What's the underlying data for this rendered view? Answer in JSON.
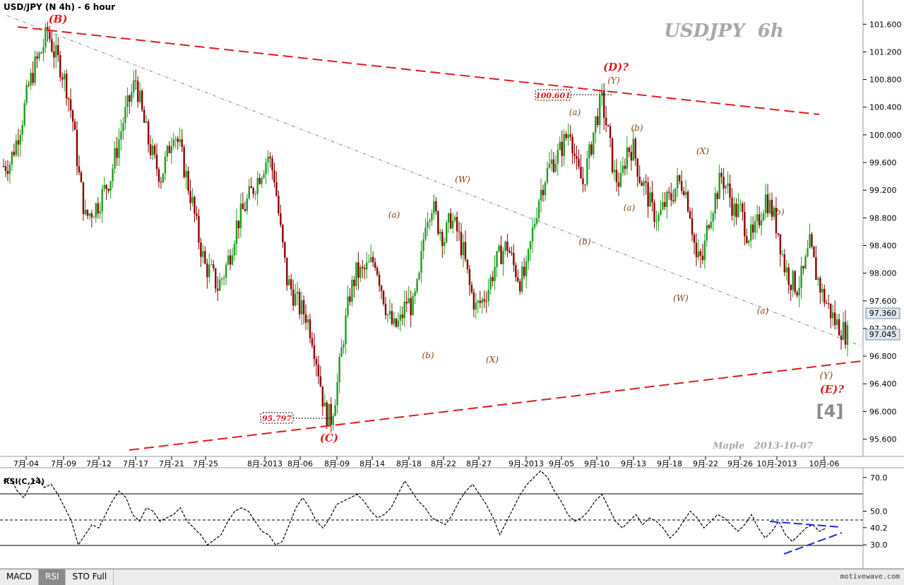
{
  "header": {
    "title": "USD/JPY (N 4h) - 6 hour",
    "watermark": "USDJPY  6h",
    "author": "Maple   2013-10-07",
    "wave_label": "[4]"
  },
  "indicator": {
    "title": "RSI(C,14)"
  },
  "tabs": [
    {
      "label": "MACD",
      "active": false
    },
    {
      "label": "RSI",
      "active": true
    },
    {
      "label": "STO Full",
      "active": false
    }
  ],
  "brand": "motivewave.com",
  "colors": {
    "up": "#1e9e1e",
    "down": "#8b0000",
    "trend": "#e31a1a",
    "label": "#8b4513",
    "major_label": "#e31a1a",
    "rsi_trend": "#1a2be3"
  },
  "chart_data": [
    {
      "type": "candlestick",
      "title": "USD/JPY (N 4h) - 6 hour",
      "y_ticks": [
        101.6,
        101.2,
        100.8,
        100.4,
        100.0,
        99.6,
        99.2,
        98.8,
        98.4,
        98.0,
        97.6,
        97.2,
        96.8,
        96.4,
        96.0,
        95.6
      ],
      "ylim": [
        95.35,
        101.95
      ],
      "x_ticks": [
        "7月-04",
        "7月-09",
        "7月-12",
        "7月-17",
        "7月-21",
        "7月-25",
        "8月-2013",
        "8月-06",
        "8月-09",
        "8月-14",
        "8月-18",
        "8月-22",
        "8月-27",
        "9月-2013",
        "9月-05",
        "9月-10",
        "9月-13",
        "9月-18",
        "9月-22",
        "9月-26",
        "10月-2013",
        "10月-06"
      ],
      "grid": false,
      "price_labels": [
        {
          "value": "97.360"
        },
        {
          "value": "97.045"
        }
      ],
      "key_points": [
        {
          "date": "7月-08",
          "price": 101.53,
          "label": "(B)"
        },
        {
          "date": "8月-08",
          "price": 95.797,
          "label": "(C)"
        },
        {
          "date": "9月-11",
          "price": 100.601,
          "label": "(D)?"
        },
        {
          "date": "10月-07",
          "price": 96.9,
          "label": "(E)?"
        }
      ],
      "annotations": [
        "(B)",
        "(a)",
        "(b)",
        "(W)",
        "(X)",
        "(C)",
        "(a)",
        "(b)",
        "(D)?",
        "(Y)",
        "(b)",
        "(a)",
        "(b)",
        "(W)",
        "(X)",
        "(a)",
        "(b)",
        "(Y)",
        "(E)?"
      ],
      "boxed_values": [
        "100.601",
        "95.797"
      ],
      "series": [
        {
          "name": "close",
          "values": [
            99.55,
            99.6,
            99.9,
            100.25,
            100.7,
            101.0,
            101.2,
            101.5,
            101.2,
            101.0,
            100.7,
            100.2,
            99.4,
            98.8,
            98.9,
            99.0,
            99.2,
            99.4,
            99.8,
            100.2,
            100.5,
            100.8,
            100.3,
            99.9,
            99.6,
            99.4,
            99.7,
            100.1,
            99.8,
            99.4,
            99.0,
            98.5,
            98.1,
            98.0,
            97.8,
            98.0,
            98.3,
            98.7,
            98.9,
            99.1,
            99.3,
            99.5,
            99.7,
            99.4,
            98.6,
            97.9,
            97.7,
            97.5,
            97.4,
            97.1,
            96.6,
            96.0,
            95.9,
            96.4,
            97.1,
            97.7,
            98.0,
            98.0,
            98.1,
            98.2,
            97.8,
            97.4,
            97.2,
            97.3,
            97.6,
            97.5,
            97.9,
            98.8,
            99.0,
            98.7,
            98.5,
            98.8,
            98.6,
            98.3,
            97.8,
            97.5,
            97.6,
            97.8,
            98.1,
            98.3,
            98.4,
            98.1,
            97.9,
            98.0,
            98.6,
            99.1,
            99.4,
            99.6,
            99.7,
            99.9,
            100.1,
            99.5,
            99.3,
            99.7,
            100.2,
            100.5,
            100.0,
            99.4,
            99.3,
            99.8,
            99.8,
            99.4,
            99.2,
            98.9,
            98.8,
            99.0,
            99.1,
            99.3,
            99.3,
            98.9,
            98.2,
            98.2,
            98.8,
            99.1,
            99.4,
            99.2,
            98.9,
            98.9,
            98.6,
            98.5,
            98.8,
            99.1,
            98.9,
            98.6,
            98.1,
            97.9,
            97.8,
            98.0,
            98.4,
            98.0,
            97.7,
            97.5,
            97.3,
            97.2,
            97.1
          ]
        }
      ]
    },
    {
      "type": "line",
      "title": "RSI(C,14)",
      "y_ticks": [
        70.0,
        50.0,
        40.2,
        30.0
      ],
      "levels": [
        70,
        50,
        30
      ],
      "ylim": [
        20,
        80
      ],
      "series": [
        {
          "name": "RSI",
          "values": [
            68,
            70,
            62,
            58,
            66,
            70,
            64,
            66,
            60,
            52,
            44,
            30,
            36,
            42,
            40,
            48,
            56,
            62,
            58,
            48,
            44,
            52,
            50,
            44,
            46,
            48,
            52,
            44,
            40,
            36,
            30,
            33,
            36,
            44,
            50,
            52,
            50,
            44,
            38,
            36,
            30,
            32,
            42,
            52,
            58,
            52,
            44,
            40,
            46,
            54,
            56,
            58,
            60,
            56,
            50,
            46,
            48,
            52,
            60,
            68,
            62,
            56,
            52,
            46,
            44,
            42,
            48,
            56,
            62,
            66,
            60,
            54,
            46,
            36,
            44,
            52,
            60,
            66,
            70,
            74,
            70,
            62,
            56,
            48,
            44,
            46,
            50,
            56,
            60,
            52,
            44,
            40,
            44,
            48,
            42,
            46,
            44,
            40,
            34,
            38,
            44,
            50,
            46,
            40,
            44,
            48,
            46,
            42,
            38,
            42,
            48,
            40,
            34,
            38,
            44,
            36,
            32,
            36,
            40,
            42,
            38,
            40
          ]
        }
      ]
    }
  ]
}
